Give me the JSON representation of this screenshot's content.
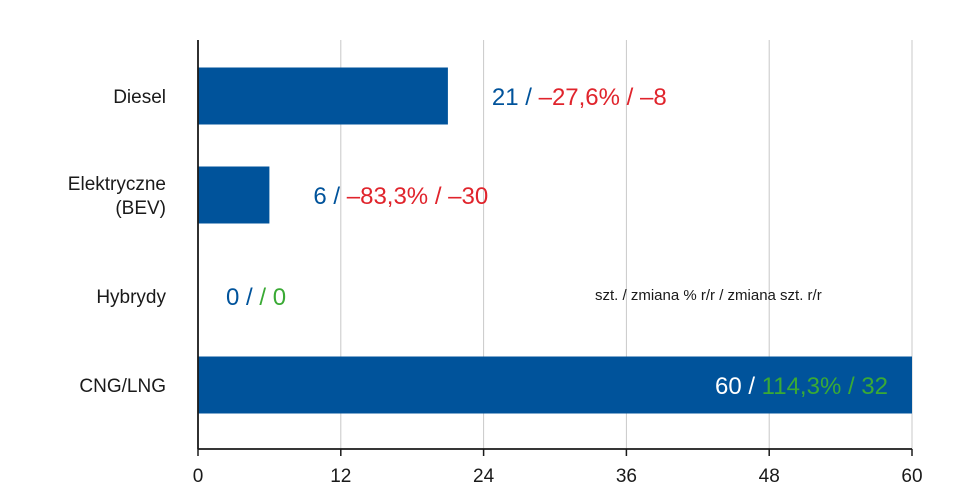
{
  "chart_data": {
    "type": "bar",
    "orientation": "horizontal",
    "categories": [
      [
        "Diesel"
      ],
      [
        "Elektryczne",
        "(BEV)"
      ],
      [
        "Hybrydy"
      ],
      [
        "CNG/LNG"
      ]
    ],
    "values": [
      21,
      6,
      0,
      60
    ],
    "change_pct": [
      "–27,6%",
      "–83,3%",
      "",
      "114,3%"
    ],
    "change_units": [
      "–8",
      "–30",
      "0",
      "32"
    ],
    "change_colors": [
      "#e0242c",
      "#e0242c",
      "#3aaa35",
      "#3aaa35"
    ],
    "xlim": [
      0,
      60
    ],
    "xticks": [
      0,
      12,
      24,
      36,
      48,
      60
    ],
    "grid": true,
    "note": "szt. / zmiana % r/r / zmiana szt. r/r",
    "colors": {
      "bar": "#00539b",
      "value_text": "#00539b",
      "inside_value_text": "#ffffff",
      "grid": "#c8c8c8",
      "axis": "#1a1a1a"
    }
  }
}
